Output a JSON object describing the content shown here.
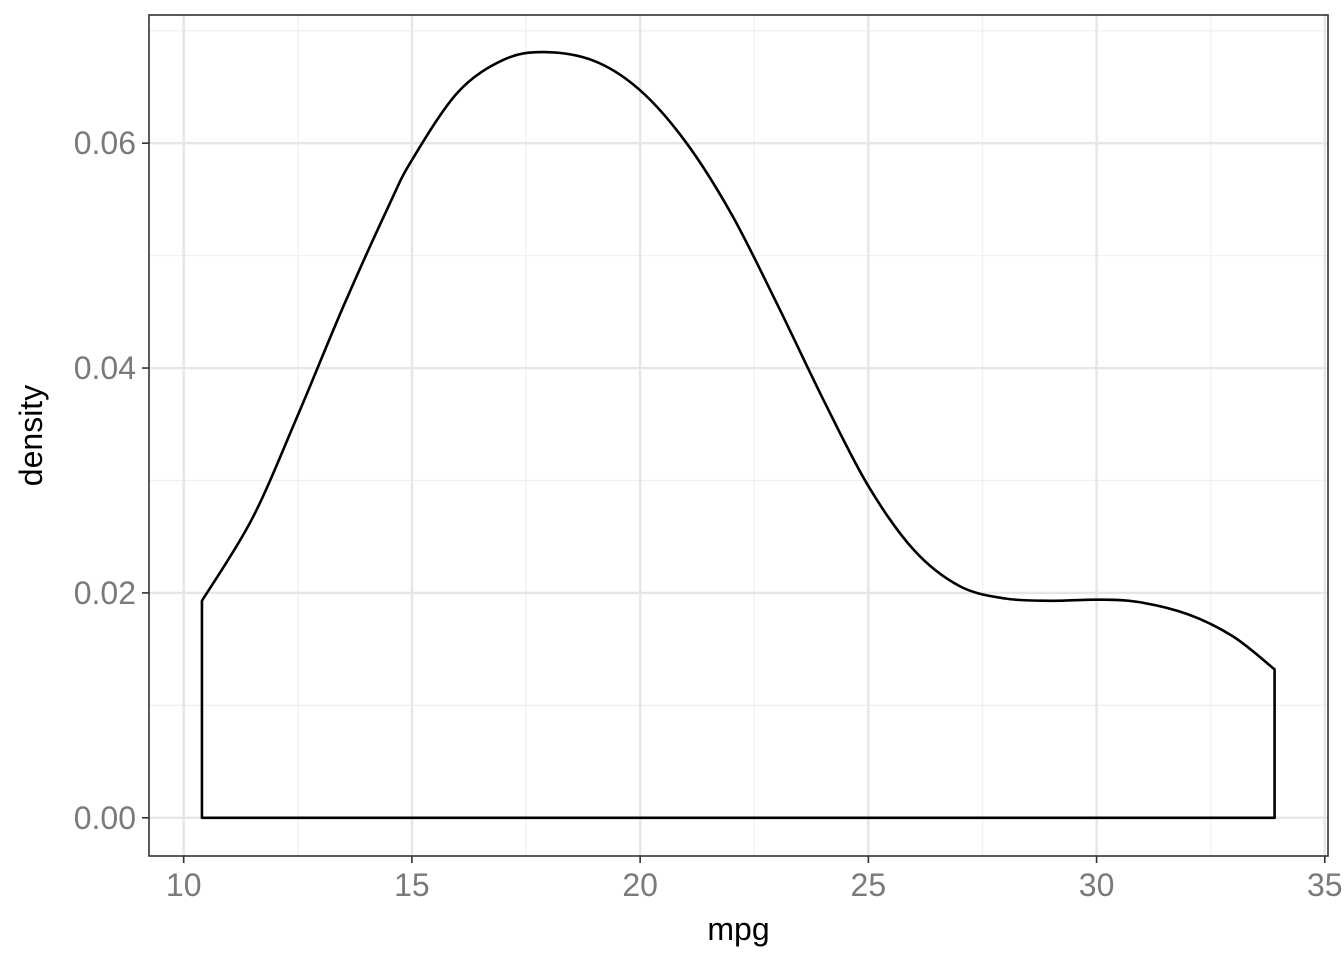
{
  "chart_data": {
    "type": "area",
    "xlabel": "mpg",
    "ylabel": "density",
    "xlim": [
      9.24,
      35.07
    ],
    "ylim": [
      -0.0034,
      0.0714
    ],
    "x_ticks": [
      10,
      15,
      20,
      25,
      30,
      35
    ],
    "x_tick_labels": [
      "10",
      "15",
      "20",
      "25",
      "30",
      "35"
    ],
    "x_minor_ticks": [
      12.5,
      17.5,
      22.5,
      27.5,
      32.5
    ],
    "y_ticks": [
      0,
      0.02,
      0.04,
      0.06
    ],
    "y_tick_labels": [
      "0.00",
      "0.02",
      "0.04",
      "0.06"
    ],
    "y_minor_ticks": [
      0.01,
      0.03,
      0.05,
      0.07
    ],
    "grid": true,
    "legend": "none",
    "colors": {
      "line": "#000000",
      "fill": "none",
      "panel_border": "#333333",
      "grid": "#ebebeb"
    },
    "series": [
      {
        "x": [
          10.4,
          11.5,
          12.5,
          13.5,
          14.5,
          15.0,
          16.0,
          17.0,
          17.9,
          19.0,
          20.0,
          21.0,
          22.0,
          23.0,
          24.0,
          25.0,
          26.0,
          27.0,
          28.0,
          29.0,
          30.0,
          30.9,
          32.0,
          33.0,
          33.9
        ],
        "y": [
          0.0193,
          0.0266,
          0.0358,
          0.0455,
          0.0545,
          0.0585,
          0.0645,
          0.0674,
          0.0681,
          0.0673,
          0.0647,
          0.0601,
          0.0537,
          0.0457,
          0.0373,
          0.0295,
          0.0238,
          0.0206,
          0.0195,
          0.0193,
          0.0194,
          0.0192,
          0.0181,
          0.0161,
          0.0132
        ]
      }
    ]
  }
}
